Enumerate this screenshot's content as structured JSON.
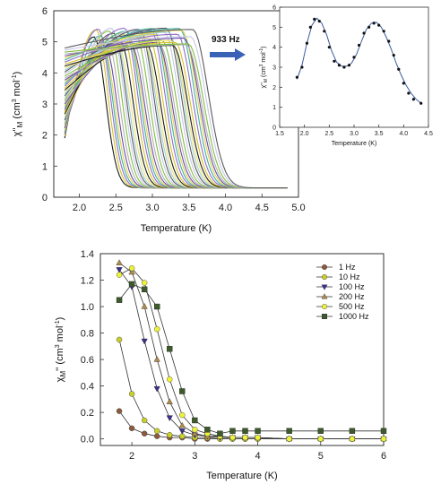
{
  "chart_data": [
    {
      "id": "main",
      "type": "line",
      "description_ref": "ac out-of-phase susceptibility vs temperature, many frequencies",
      "xlabel": "Temperature (K)",
      "ylabel_main": "χ''",
      "ylabel_sub": "M",
      "ylabel_unit": " (cm",
      "ylabel_sup1": "3",
      "ylabel_unit2": " mol",
      "ylabel_sup2": "-1",
      "ylabel_end": ")",
      "xlim": [
        1.65,
        5.0
      ],
      "ylim": [
        0,
        6
      ],
      "xticks": [
        "2.0",
        "2.5",
        "3.0",
        "3.5",
        "4.0",
        "4.5",
        "5.0"
      ],
      "xtick_values": [
        2.0,
        2.5,
        3.0,
        3.5,
        4.0,
        4.5,
        5.0
      ],
      "yticks": [
        "0",
        "1",
        "2",
        "3",
        "4",
        "5",
        "6"
      ],
      "ytick_values": [
        0,
        1,
        2,
        3,
        4,
        5,
        6
      ],
      "family": {
        "count": 46,
        "x_start": 1.8,
        "x_end": 4.85,
        "peak_first": 2.2,
        "peak_last": 3.55,
        "peak_value": 5.55,
        "tail_value": 0.3,
        "palette": [
          "#1a1a1a",
          "#d4c22a",
          "#8f6cc7",
          "#3fb0a0",
          "#e0d24a",
          "#6a4aa8",
          "#b0b0b0",
          "#7fbf3f",
          "#c7c7e8",
          "#5a5a5a",
          "#9ad0d8",
          "#f0e070"
        ]
      }
    },
    {
      "id": "inset",
      "type": "scatter",
      "series_label": "933 Hz",
      "xlabel": "Temperature (K)",
      "ylabel_main": "χ''",
      "ylabel_sub": "M",
      "ylabel_unit": " (cm",
      "ylabel_sup1": "3",
      "ylabel_unit2": " mol",
      "ylabel_sup2": "-1",
      "ylabel_end": ")",
      "xlim": [
        1.5,
        4.5
      ],
      "ylim": [
        0,
        6
      ],
      "xticks": [
        "1.5",
        "2.0",
        "2.5",
        "3.0",
        "3.5",
        "4.0",
        "4.5"
      ],
      "xtick_values": [
        1.5,
        2.0,
        2.5,
        3.0,
        3.5,
        4.0,
        4.5
      ],
      "yticks": [
        "0",
        "1",
        "2",
        "3",
        "4",
        "5",
        "6"
      ],
      "ytick_values": [
        0,
        1,
        2,
        3,
        4,
        5,
        6
      ],
      "points": {
        "x": [
          1.85,
          1.95,
          2.05,
          2.12,
          2.2,
          2.3,
          2.4,
          2.5,
          2.6,
          2.7,
          2.8,
          2.9,
          3.0,
          3.1,
          3.2,
          3.3,
          3.4,
          3.5,
          3.6,
          3.7,
          3.8,
          3.9,
          4.0,
          4.1,
          4.2,
          4.35
        ],
        "y": [
          2.5,
          3.0,
          4.2,
          5.0,
          5.4,
          5.3,
          4.8,
          4.0,
          3.3,
          3.1,
          3.0,
          3.1,
          3.5,
          4.1,
          4.7,
          5.0,
          5.2,
          5.1,
          4.8,
          4.3,
          3.6,
          2.9,
          2.2,
          1.7,
          1.4,
          1.2
        ]
      },
      "fit": {
        "x": [
          1.85,
          1.95,
          2.05,
          2.15,
          2.25,
          2.35,
          2.45,
          2.55,
          2.65,
          2.75,
          2.85,
          2.95,
          3.05,
          3.15,
          3.25,
          3.35,
          3.45,
          3.55,
          3.65,
          3.75,
          3.85,
          3.95,
          4.05,
          4.15,
          4.25,
          4.35
        ],
        "y": [
          2.4,
          3.1,
          4.2,
          5.1,
          5.45,
          5.2,
          4.6,
          3.8,
          3.25,
          3.05,
          3.05,
          3.2,
          3.65,
          4.3,
          4.9,
          5.2,
          5.25,
          5.0,
          4.5,
          3.9,
          3.2,
          2.6,
          2.1,
          1.7,
          1.4,
          1.2
        ]
      },
      "arrow_color": "#3a63b8",
      "fit_color": "#3a5aa0"
    },
    {
      "id": "bottom",
      "type": "line",
      "xlabel": "Temperature (K)",
      "ylabel_main": "χ",
      "ylabel_sub": "M",
      "ylabel_quote": "''",
      "ylabel_unit": " (cm",
      "ylabel_sup1": "3",
      "ylabel_unit2": " mol",
      "ylabel_sup2": "-1",
      "ylabel_end": ")",
      "xlim": [
        1.5,
        6.0
      ],
      "ylim": [
        -0.05,
        1.4
      ],
      "xticks": [
        "2",
        "3",
        "4",
        "5",
        "6"
      ],
      "xtick_values": [
        2,
        3,
        4,
        5,
        6
      ],
      "yticks": [
        "0.0",
        "0.2",
        "0.4",
        "0.6",
        "0.8",
        "1.0",
        "1.2",
        "1.4"
      ],
      "ytick_values": [
        0.0,
        0.2,
        0.4,
        0.6,
        0.8,
        1.0,
        1.2,
        1.4
      ],
      "legend_position": "top-right",
      "x": [
        1.8,
        2.0,
        2.2,
        2.4,
        2.6,
        2.8,
        3.0,
        3.2,
        3.4,
        3.6,
        3.8,
        4.0,
        4.5,
        5.0,
        5.5,
        6.0
      ],
      "series": [
        {
          "name": "1 Hz",
          "color": "#8b5a3c",
          "marker": "circle",
          "values": [
            0.21,
            0.08,
            0.04,
            0.02,
            0.01,
            0.01,
            0.0,
            0.0,
            0.0,
            0.0,
            0.0,
            0.0,
            0.0,
            0.0,
            0.0,
            0.0
          ]
        },
        {
          "name": "10 Hz",
          "color": "#c9cf2a",
          "marker": "circle",
          "values": [
            0.75,
            0.34,
            0.14,
            0.06,
            0.03,
            0.02,
            0.01,
            0.01,
            0.0,
            0.0,
            0.0,
            0.0,
            0.0,
            0.0,
            0.0,
            0.0
          ]
        },
        {
          "name": "100 Hz",
          "color": "#3a2f8f",
          "marker": "triangle-down",
          "values": [
            1.28,
            1.15,
            0.74,
            0.38,
            0.16,
            0.06,
            0.03,
            0.02,
            0.01,
            0.01,
            0.01,
            0.01,
            0.0,
            0.0,
            0.0,
            0.0
          ]
        },
        {
          "name": "200 Hz",
          "color": "#b08a4a",
          "marker": "triangle-up",
          "values": [
            1.33,
            1.26,
            1.0,
            0.6,
            0.28,
            0.1,
            0.04,
            0.02,
            0.02,
            0.01,
            0.01,
            0.01,
            0.0,
            0.0,
            0.0,
            0.0
          ]
        },
        {
          "name": "500 Hz",
          "color": "#eef23a",
          "marker": "circle",
          "values": [
            1.24,
            1.29,
            1.18,
            0.83,
            0.45,
            0.18,
            0.07,
            0.04,
            0.02,
            0.01,
            0.01,
            0.01,
            0.0,
            0.0,
            0.0,
            0.0
          ]
        },
        {
          "name": "1000 Hz",
          "color": "#3d5a2a",
          "marker": "square",
          "values": [
            1.05,
            1.17,
            1.13,
            1.0,
            0.68,
            0.36,
            0.14,
            0.07,
            0.04,
            0.06,
            0.06,
            0.06,
            0.06,
            0.06,
            0.06,
            0.06
          ]
        }
      ]
    }
  ]
}
